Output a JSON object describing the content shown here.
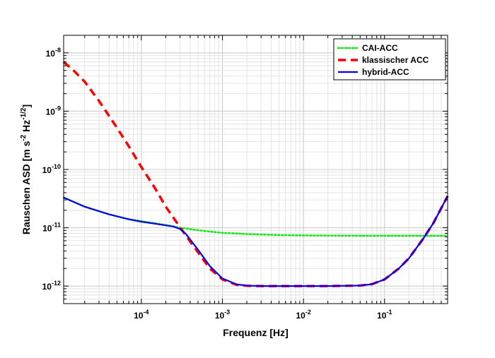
{
  "chart_data": {
    "type": "line",
    "xscale": "log",
    "yscale": "log",
    "xlim": [
      1.1e-05,
      0.6
    ],
    "ylim": [
      5e-13,
      2e-08
    ],
    "grid": true,
    "legend_position": "top-right",
    "xlabel": "Frequenz  [Hz]",
    "ylabel_parts": {
      "base": "Rauschen ASD  [m s",
      "exp1": "-2",
      "mid": " Hz",
      "exp2": "-1/2",
      "end": "]"
    },
    "x_ticks": [
      {
        "mantissa": "10",
        "exp": "-4",
        "value": 0.0001
      },
      {
        "mantissa": "10",
        "exp": "-3",
        "value": 0.001
      },
      {
        "mantissa": "10",
        "exp": "-2",
        "value": 0.01
      },
      {
        "mantissa": "10",
        "exp": "-1",
        "value": 0.1
      }
    ],
    "y_ticks": [
      {
        "mantissa": "10",
        "exp": "-12",
        "value": 1e-12
      },
      {
        "mantissa": "10",
        "exp": "-11",
        "value": 1e-11
      },
      {
        "mantissa": "10",
        "exp": "-10",
        "value": 1e-10
      },
      {
        "mantissa": "10",
        "exp": "-9",
        "value": 1e-09
      },
      {
        "mantissa": "10",
        "exp": "-8",
        "value": 1e-08
      }
    ],
    "series": [
      {
        "name": "CAI-ACC",
        "color": "#00ee00",
        "style": "dotted",
        "x": [
          1.1e-05,
          2e-05,
          4e-05,
          7e-05,
          0.0001,
          0.0002,
          0.0003,
          0.0005,
          0.0007,
          0.001,
          0.002,
          0.005,
          0.01,
          0.05,
          0.1,
          0.3,
          0.6
        ],
        "y": [
          3.3e-11,
          2.3e-11,
          1.7e-11,
          1.4e-11,
          1.3e-11,
          1.12e-11,
          1e-11,
          9.1e-12,
          8.6e-12,
          8.2e-12,
          7.8e-12,
          7.5e-12,
          7.4e-12,
          7.3e-12,
          7.3e-12,
          7.3e-12,
          7.3e-12
        ]
      },
      {
        "name": "klassischer ACC",
        "color": "#ff0000",
        "style": "dashed",
        "x": [
          1.1e-05,
          1.5e-05,
          2e-05,
          3e-05,
          5e-05,
          7e-05,
          0.0001,
          0.00015,
          0.0002,
          0.0003,
          0.0004,
          0.0005,
          0.0007,
          0.001,
          0.0015,
          0.002,
          0.003,
          0.005,
          0.01,
          0.02,
          0.05,
          0.07,
          0.1,
          0.15,
          0.2,
          0.3,
          0.4,
          0.6
        ],
        "y": [
          7e-09,
          4.8e-09,
          3.2e-09,
          1.5e-09,
          5.2e-10,
          2.5e-10,
          1.1e-10,
          4.6e-11,
          2.3e-11,
          1.02e-11,
          5.8e-12,
          3.8e-12,
          2e-12,
          1.3e-12,
          1.05e-12,
          1.01e-12,
          1e-12,
          1e-12,
          1e-12,
          1e-12,
          1.02e-12,
          1.08e-12,
          1.3e-12,
          2e-12,
          3e-12,
          6.5e-12,
          1.2e-11,
          3.5e-11
        ]
      },
      {
        "name": "hybrid-ACC",
        "color": "#0000ee",
        "style": "solid",
        "x": [
          1.1e-05,
          2e-05,
          4e-05,
          7e-05,
          0.0001,
          0.00015,
          0.0002,
          0.00025,
          0.0003,
          0.00035,
          0.0004,
          0.0005,
          0.0007,
          0.001,
          0.0015,
          0.002,
          0.003,
          0.005,
          0.01,
          0.02,
          0.05,
          0.07,
          0.1,
          0.15,
          0.2,
          0.3,
          0.4,
          0.6
        ],
        "y": [
          3.3e-11,
          2.3e-11,
          1.7e-11,
          1.4e-11,
          1.27e-11,
          1.17e-11,
          1.1e-11,
          1.05e-11,
          9.5e-12,
          8e-12,
          6.3e-12,
          4.2e-12,
          2.2e-12,
          1.35e-12,
          1.07e-12,
          1.02e-12,
          1e-12,
          1e-12,
          1e-12,
          1e-12,
          1.02e-12,
          1.08e-12,
          1.3e-12,
          2e-12,
          3e-12,
          6.5e-12,
          1.2e-11,
          3.5e-11
        ]
      }
    ]
  }
}
